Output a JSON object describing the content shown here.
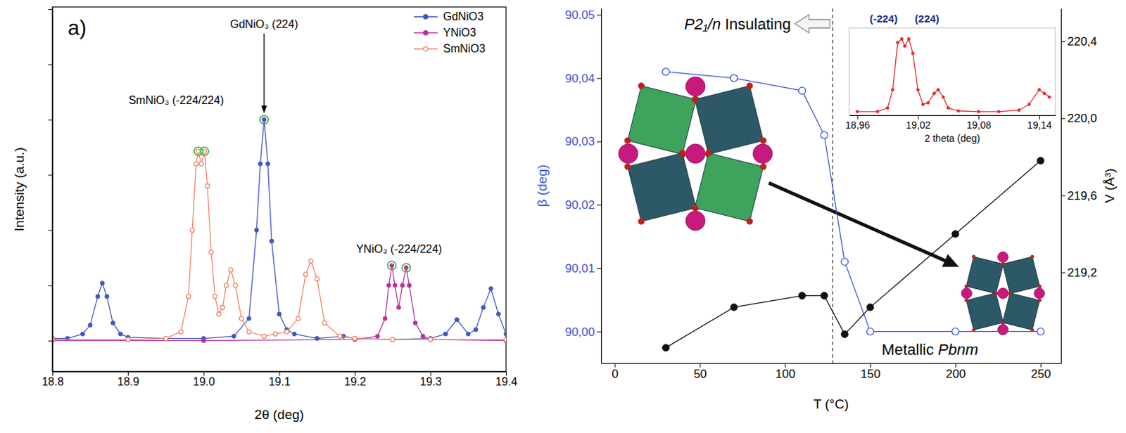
{
  "chart_data": [
    {
      "type": "line",
      "panel_label": "a)",
      "xlabel": "2θ (deg)",
      "ylabel": "Intensity (a.u.)",
      "xlim": [
        18.8,
        19.4
      ],
      "xticks": [
        18.8,
        18.9,
        {
          "value": 19,
          "label": "19.0"
        },
        19.1,
        19.2,
        19.3,
        19.4
      ],
      "ylim": [
        -0.14,
        1.51
      ],
      "yticks": [
        0,
        0.25,
        0.5,
        0.75,
        1,
        1.25,
        1.5
      ],
      "tick_labels": "x",
      "legend": "upper right",
      "series": [
        {
          "name": "GdNiO3",
          "color": "#4257c0",
          "marker": "circle",
          "x": [
            18.8,
            18.82,
            18.84,
            18.85,
            18.86,
            18.866,
            18.872,
            18.88,
            18.89,
            18.9,
            18.95,
            19.0,
            19.04,
            19.06,
            19.07,
            19.075,
            19.08,
            19.085,
            19.09,
            19.1,
            19.11,
            19.12,
            19.15,
            19.185,
            19.2,
            19.25,
            19.3,
            19.32,
            19.335,
            19.35,
            19.36,
            19.37,
            19.38,
            19.39,
            19.4
          ],
          "values": [
            0.01,
            0.01,
            0.03,
            0.07,
            0.2,
            0.26,
            0.2,
            0.08,
            0.03,
            0.015,
            0.01,
            0.01,
            0.02,
            0.1,
            0.5,
            0.8,
            1.0,
            0.8,
            0.45,
            0.12,
            0.05,
            0.03,
            0.01,
            0.02,
            0.01,
            0.005,
            0.01,
            0.03,
            0.095,
            0.03,
            0.05,
            0.15,
            0.235,
            0.12,
            0.03
          ],
          "peaks": [
            19.08
          ]
        },
        {
          "name": "YNiO3",
          "color": "#b8329a",
          "marker": "circle",
          "x": [
            18.8,
            19.0,
            19.2,
            19.23,
            19.24,
            19.245,
            19.249,
            19.253,
            19.258,
            19.263,
            19.268,
            19.272,
            19.28,
            19.29,
            19.3,
            19.4
          ],
          "values": [
            0,
            0,
            0.005,
            0.02,
            0.1,
            0.25,
            0.34,
            0.25,
            0.15,
            0.25,
            0.33,
            0.25,
            0.08,
            0.02,
            0.005,
            0
          ],
          "peaks": [
            19.249,
            19.268
          ]
        },
        {
          "name": "SmNiO3",
          "color": "#f08466",
          "marker": "open-circle",
          "x": [
            18.8,
            18.9,
            18.95,
            18.97,
            18.98,
            18.985,
            18.99,
            18.993,
            18.997,
            19.001,
            19.005,
            19.01,
            19.015,
            19.02,
            19.025,
            19.03,
            19.036,
            19.042,
            19.05,
            19.06,
            19.08,
            19.095,
            19.11,
            19.125,
            19.135,
            19.142,
            19.15,
            19.16,
            19.18,
            19.2,
            19.25,
            19.3,
            19.4
          ],
          "values": [
            0.005,
            0.005,
            0.01,
            0.04,
            0.2,
            0.5,
            0.8,
            0.857,
            0.8,
            0.857,
            0.7,
            0.4,
            0.2,
            0.12,
            0.15,
            0.25,
            0.32,
            0.25,
            0.1,
            0.04,
            0.02,
            0.03,
            0.04,
            0.1,
            0.3,
            0.36,
            0.28,
            0.08,
            0.02,
            0.01,
            0.005,
            0.005,
            0.005
          ],
          "peaks": [
            18.993,
            19.001
          ]
        }
      ],
      "annotations": [
        {
          "text": "GdNiO₃ (224)"
        },
        {
          "text": "SmNiO₃ (-224/224)"
        },
        {
          "text": "YNiO₃ (-224/224)"
        }
      ]
    },
    {
      "type": "line",
      "xlabel": "T (°C)",
      "ylabel": "β (deg)",
      "y2label": "V (Å³)",
      "x": [
        30,
        70,
        110,
        123,
        135,
        150,
        200,
        250
      ],
      "xlim": [
        -8,
        262
      ],
      "xticks": [
        0,
        50,
        100,
        150,
        200,
        250
      ],
      "ylim": [
        89.995,
        90.051
      ],
      "yticks": [
        {
          "value": 90,
          "label": "90,00"
        },
        {
          "value": 90.01,
          "label": "90,01"
        },
        {
          "value": 90.02,
          "label": "90,02"
        },
        {
          "value": 90.03,
          "label": "90,03"
        },
        {
          "value": 90.04,
          "label": "90,04"
        },
        {
          "value": 90.05,
          "label": "90.05"
        }
      ],
      "y2lim": [
        218.73,
        220.57
      ],
      "y2ticks": [
        {
          "value": 219.2,
          "label": "219,2"
        },
        {
          "value": 219.6,
          "label": "219,6"
        },
        {
          "value": 220,
          "label": "220,0"
        },
        {
          "value": 220.4,
          "label": "220,4"
        }
      ],
      "transition_temperature": 128,
      "series": [
        {
          "color": "#3a55d6",
          "marker": "open-circle",
          "values": [
            90.041,
            90.04,
            90.038,
            90.031,
            90.011,
            90.0,
            90.0,
            90.0
          ]
        },
        {
          "color": "#111111",
          "marker": "circle",
          "axis": "y2",
          "values": [
            218.81,
            219.02,
            219.08,
            219.08,
            218.88,
            219.02,
            219.4,
            219.78
          ]
        }
      ],
      "annotations": [
        {
          "text": "P2₁/n Insulating"
        },
        {
          "text": "Metallic Pbnm"
        }
      ]
    },
    {
      "type": "line",
      "xlabel": "2 theta (deg)",
      "xlim": [
        18.952,
        19.156
      ],
      "xticks": [
        {
          "value": 18.96,
          "label": "18,96"
        },
        {
          "value": 19.02,
          "label": "19,02"
        },
        {
          "value": 19.08,
          "label": "19,08"
        },
        {
          "value": 19.14,
          "label": "19,14"
        }
      ],
      "ylim": [
        -0.05,
        1.15
      ],
      "tick_labels": "x",
      "series": [
        {
          "color": "#e8262b",
          "marker": "circle",
          "x": [
            18.96,
            18.98,
            18.99,
            18.995,
            19.0,
            19.004,
            19.007,
            19.011,
            19.015,
            19.02,
            19.025,
            19.03,
            19.036,
            19.04,
            19.045,
            19.05,
            19.06,
            19.08,
            19.1,
            19.12,
            19.13,
            19.14,
            19.145,
            19.15
          ],
          "values": [
            0,
            0,
            0.05,
            0.3,
            0.95,
            1.0,
            0.9,
            1.0,
            0.8,
            0.3,
            0.1,
            0.12,
            0.25,
            0.3,
            0.2,
            0.05,
            0.01,
            0,
            0,
            0.02,
            0.1,
            0.3,
            0.25,
            0.2
          ]
        }
      ],
      "annotations": [
        {
          "text": "(-224)"
        },
        {
          "text": "(224)"
        }
      ]
    }
  ]
}
